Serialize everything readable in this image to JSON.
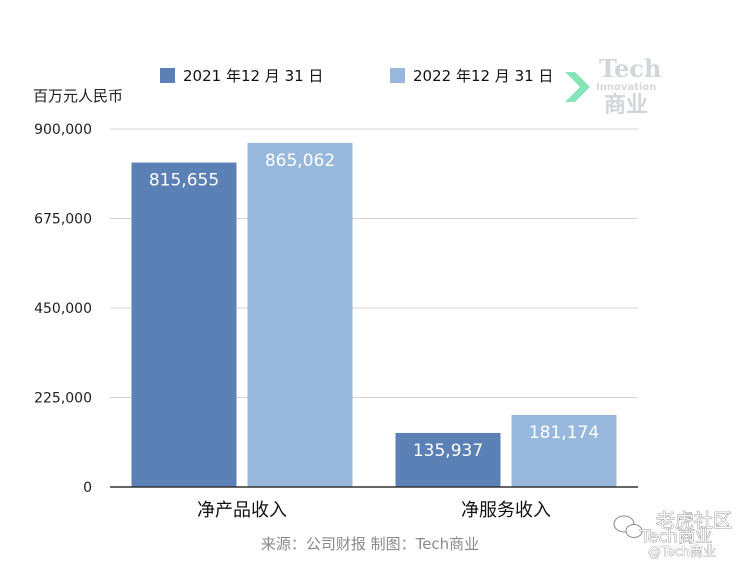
{
  "chart_data": {
    "type": "bar",
    "unit_label": "百万元人民币",
    "categories": [
      "净产品收入",
      "净服务收入"
    ],
    "series": [
      {
        "name": "2021 年12 月 31 日",
        "values": [
          815655,
          135937
        ],
        "value_labels": [
          "815,655",
          "135,937"
        ],
        "color": "#5b80b6"
      },
      {
        "name": "2022 年12 月 31 日",
        "values": [
          865062,
          181174
        ],
        "value_labels": [
          "865,062",
          "181,174"
        ],
        "color": "#97b8dc"
      }
    ],
    "ylim": [
      0,
      900000
    ],
    "yticks": [
      0,
      225000,
      450000,
      675000,
      900000
    ],
    "ytick_labels": [
      "0",
      "225,000",
      "450,000",
      "675,000",
      "900,000"
    ],
    "grid": true,
    "legend_position": "top",
    "source": "来源：公司财报 制图：Tech商业"
  },
  "watermark": {
    "tech": "Tech",
    "innovation": "Innovation",
    "cn": "商业",
    "accent_color": "#7fe3b5"
  },
  "overlay": {
    "community": "老虎社区",
    "account": "Tech商业",
    "handle": "@Tech商业"
  }
}
